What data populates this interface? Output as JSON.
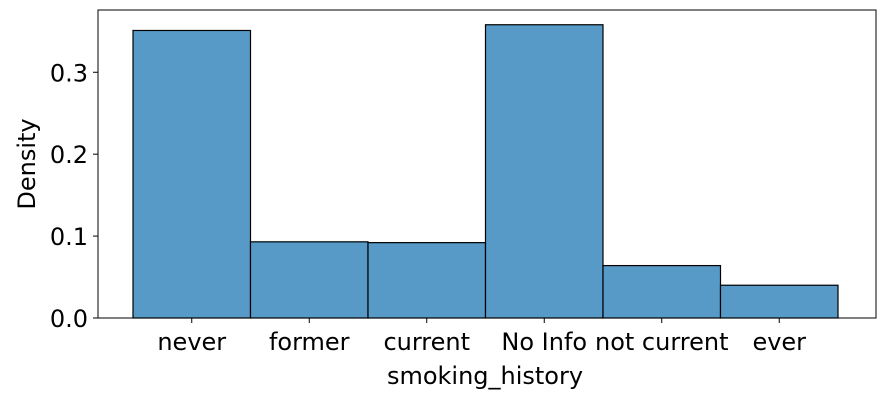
{
  "chart_data": {
    "type": "bar",
    "xlabel": "smoking_history",
    "ylabel": "Density",
    "categories": [
      "never",
      "former",
      "current",
      "No Info",
      "not current",
      "ever"
    ],
    "values": [
      0.351,
      0.093,
      0.092,
      0.358,
      0.064,
      0.04
    ],
    "ylim": [
      0,
      0.376
    ],
    "yticks": [
      {
        "value": 0.0,
        "label": "0.0"
      },
      {
        "value": 0.1,
        "label": "0.1"
      },
      {
        "value": 0.2,
        "label": "0.2"
      },
      {
        "value": 0.3,
        "label": "0.3"
      }
    ],
    "grid": false,
    "bar_color": "#5799c7",
    "edge_color": "#000000"
  }
}
